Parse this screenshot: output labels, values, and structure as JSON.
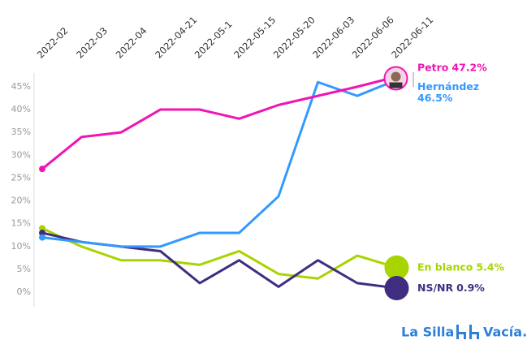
{
  "chart_data": {
    "type": "line",
    "categories": [
      "2022-02",
      "2022-03",
      "2022-04",
      "2022-04-21",
      "2022-05-1",
      "2022-05-15",
      "2022-05-20",
      "2022-06-03",
      "2022-06-06",
      "2022-06-11"
    ],
    "series": [
      {
        "name": "Petro",
        "end_label": "47.2%",
        "color": "#f014b4",
        "values": [
          27,
          34,
          35,
          40,
          40,
          38,
          41,
          43,
          45,
          47.2
        ]
      },
      {
        "name": "Hernández",
        "end_label": "46.5%",
        "color": "#3399ff",
        "values": [
          12,
          11,
          10,
          10,
          13,
          13,
          21,
          46,
          43,
          46.5
        ]
      },
      {
        "name": "En blanco",
        "end_label": "5.4%",
        "color": "#a8d400",
        "values": [
          14,
          10,
          7,
          7,
          6,
          9,
          4,
          3,
          8,
          5.4
        ]
      },
      {
        "name": "NS/NR",
        "end_label": "0.9%",
        "color": "#3f2d80",
        "values": [
          13,
          11,
          10,
          9,
          2,
          7,
          1.2,
          7,
          2,
          0.9
        ]
      }
    ],
    "ylim": [
      -3,
      48
    ],
    "yticks": [
      {
        "value": 0,
        "label": "0%"
      },
      {
        "value": 5,
        "label": "5%"
      },
      {
        "value": 10,
        "label": "10%"
      },
      {
        "value": 15,
        "label": "15%"
      },
      {
        "value": 20,
        "label": "20%"
      },
      {
        "value": 25,
        "label": "25%"
      },
      {
        "value": 30,
        "label": "30%"
      },
      {
        "value": 35,
        "label": "35%"
      },
      {
        "value": 40,
        "label": "40%"
      },
      {
        "value": 45,
        "label": "45%"
      }
    ],
    "grid": false,
    "brand": [
      "La Silla",
      "Vacía."
    ]
  }
}
